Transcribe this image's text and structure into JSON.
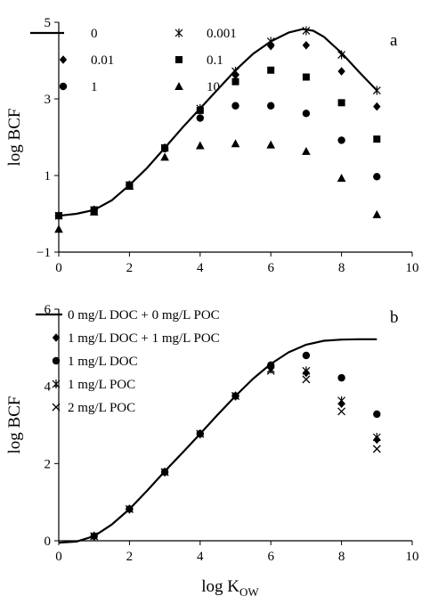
{
  "chart_data": [
    {
      "type": "scatter",
      "panel_label": "a",
      "xlabel": "",
      "ylabel": "log BCF",
      "xlim": [
        0,
        10
      ],
      "ylim": [
        -1,
        5
      ],
      "xticks": [
        "0",
        "2",
        "4",
        "6",
        "8",
        "10"
      ],
      "xtick_values": [
        0,
        2,
        4,
        6,
        8,
        10
      ],
      "yticks": [
        "−1",
        "1",
        "3",
        "5"
      ],
      "ytick_values": [
        -1,
        1,
        3,
        5
      ],
      "legend_columns": 2,
      "legend_position": "top-left",
      "series": [
        {
          "name": "0",
          "marker": "line",
          "x": [
            0,
            0.5,
            1,
            1.5,
            2,
            2.5,
            3,
            3.5,
            4,
            4.5,
            5,
            5.5,
            6,
            6.5,
            6.9,
            7.2,
            7.5,
            8,
            8.5,
            9
          ],
          "y": [
            -0.05,
            0.0,
            0.1,
            0.35,
            0.75,
            1.2,
            1.72,
            2.25,
            2.75,
            3.25,
            3.75,
            4.18,
            4.5,
            4.73,
            4.82,
            4.78,
            4.62,
            4.2,
            3.7,
            3.22
          ]
        },
        {
          "name": "0.001",
          "marker": "star",
          "x": [
            0,
            1,
            2,
            3,
            4,
            5,
            6,
            7,
            8,
            9
          ],
          "y": [
            -0.05,
            0.1,
            0.75,
            1.72,
            2.75,
            3.72,
            4.5,
            4.78,
            4.15,
            3.22
          ]
        },
        {
          "name": "0.01",
          "marker": "diamond",
          "x": [
            0,
            1,
            2,
            3,
            4,
            5,
            6,
            7,
            8,
            9
          ],
          "y": [
            -0.05,
            0.1,
            0.75,
            1.72,
            2.72,
            3.62,
            4.38,
            4.4,
            3.72,
            2.8
          ]
        },
        {
          "name": "0.1",
          "marker": "square",
          "x": [
            0,
            1,
            2,
            3,
            4,
            5,
            6,
            7,
            8,
            9
          ],
          "y": [
            -0.05,
            0.1,
            0.75,
            1.72,
            2.7,
            3.45,
            3.75,
            3.57,
            2.9,
            1.95
          ]
        },
        {
          "name": "1",
          "marker": "circle",
          "x": [
            0,
            1,
            2,
            3,
            4,
            5,
            6,
            7,
            8,
            9
          ],
          "y": [
            -0.05,
            0.1,
            0.75,
            1.7,
            2.5,
            2.82,
            2.82,
            2.62,
            1.92,
            0.97
          ]
        },
        {
          "name": "10",
          "marker": "triangle",
          "x": [
            0,
            1,
            2,
            3,
            4,
            5,
            6,
            7,
            8,
            9
          ],
          "y": [
            -0.4,
            0.05,
            0.72,
            1.48,
            1.78,
            1.83,
            1.8,
            1.63,
            0.93,
            -0.02
          ]
        }
      ]
    },
    {
      "type": "scatter",
      "panel_label": "b",
      "xlabel": "log K",
      "xlabel_subscript": "OW",
      "ylabel": "log BCF",
      "xlim": [
        0,
        10
      ],
      "ylim": [
        0,
        6
      ],
      "xticks": [
        "0",
        "2",
        "4",
        "6",
        "8",
        "10"
      ],
      "xtick_values": [
        0,
        2,
        4,
        6,
        8,
        10
      ],
      "yticks": [
        "0",
        "2",
        "4",
        "6"
      ],
      "ytick_values": [
        0,
        2,
        4,
        6
      ],
      "legend_columns": 1,
      "legend_position": "top-left",
      "series": [
        {
          "name": "0 mg/L DOC + 0 mg/L POC",
          "marker": "line",
          "x": [
            0,
            0.5,
            1,
            1.5,
            2,
            2.5,
            3,
            3.5,
            4,
            4.5,
            5,
            5.5,
            6,
            6.5,
            7,
            7.5,
            8,
            8.5,
            9
          ],
          "y": [
            -0.05,
            -0.02,
            0.12,
            0.42,
            0.82,
            1.3,
            1.8,
            2.28,
            2.77,
            3.27,
            3.75,
            4.2,
            4.58,
            4.88,
            5.08,
            5.18,
            5.21,
            5.22,
            5.22
          ]
        },
        {
          "name": "1 mg/L DOC + 1 mg/L POC",
          "marker": "diamond",
          "x": [
            1,
            2,
            3,
            4,
            5,
            6,
            7,
            8,
            9
          ],
          "y": [
            0.12,
            0.82,
            1.78,
            2.77,
            3.75,
            4.52,
            4.35,
            3.55,
            2.62
          ]
        },
        {
          "name": "1 mg/L DOC",
          "marker": "circle",
          "x": [
            1,
            2,
            3,
            4,
            5,
            6,
            7,
            8,
            9
          ],
          "y": [
            0.12,
            0.82,
            1.78,
            2.77,
            3.75,
            4.55,
            4.8,
            4.22,
            3.28
          ]
        },
        {
          "name": "1 mg/L POC",
          "marker": "star",
          "x": [
            1,
            2,
            3,
            4,
            5,
            6,
            7,
            8,
            9
          ],
          "y": [
            0.12,
            0.82,
            1.78,
            2.77,
            3.75,
            4.45,
            4.4,
            3.63,
            2.68
          ]
        },
        {
          "name": "2 mg/L POC",
          "marker": "cross",
          "x": [
            1,
            2,
            3,
            4,
            5,
            6,
            7,
            8,
            9
          ],
          "y": [
            0.12,
            0.82,
            1.78,
            2.77,
            3.75,
            4.4,
            4.18,
            3.35,
            2.38
          ]
        }
      ]
    }
  ]
}
